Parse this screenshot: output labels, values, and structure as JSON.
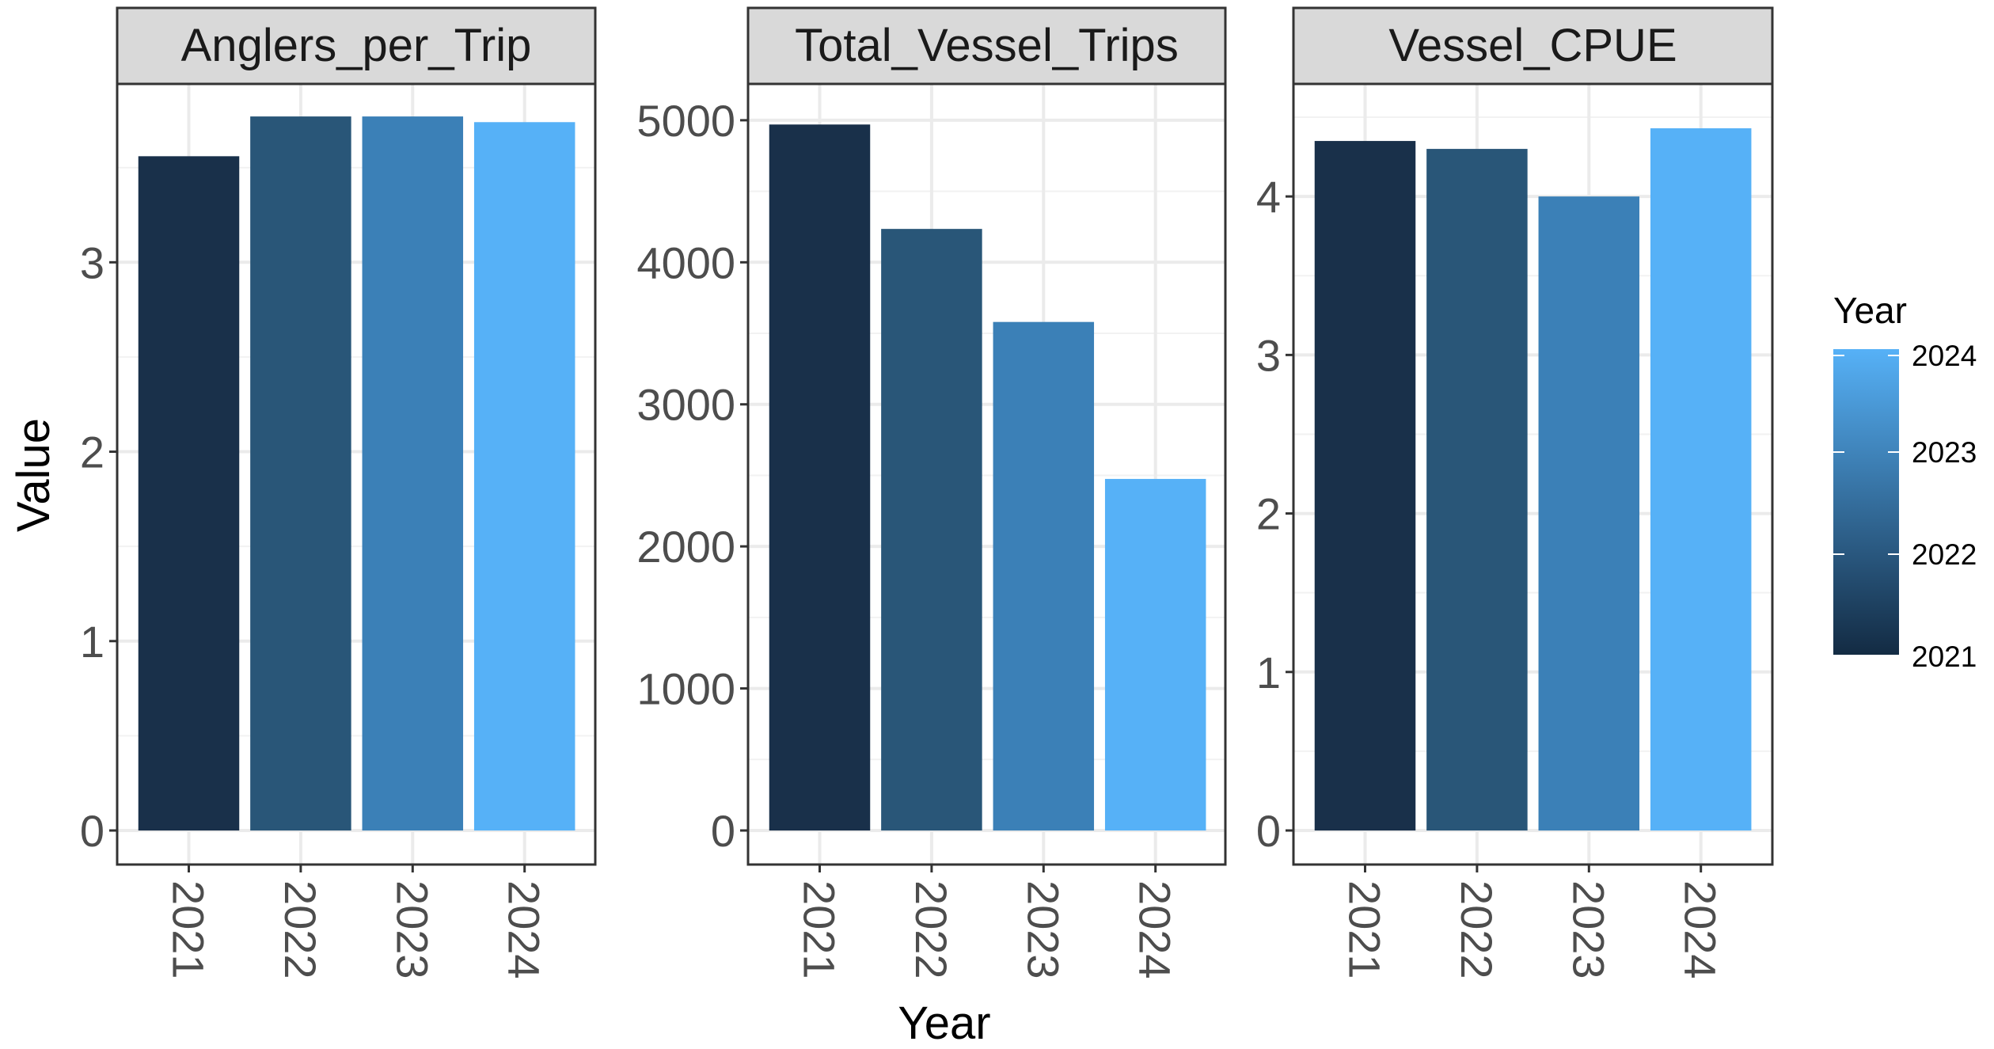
{
  "chart_data": {
    "type": "bar",
    "layout": "faceted",
    "categories": [
      "2021",
      "2022",
      "2023",
      "2024"
    ],
    "xlabel": "Year",
    "ylabel": "Value",
    "legend": {
      "title": "Year",
      "type": "colorbar",
      "placement": "right",
      "labels": [
        "2024",
        "2023",
        "2022",
        "2021"
      ],
      "color_low": "#132B43",
      "color_high": "#56B1F7"
    },
    "bar_colors": [
      "#19304A",
      "#295678",
      "#3B80B7",
      "#56B1F7"
    ],
    "grid": true,
    "panels": [
      {
        "title": "Anglers_per_Trip",
        "values": [
          3.56,
          3.77,
          3.77,
          3.74
        ],
        "ylim": [
          0,
          3.9
        ],
        "yticks": [
          0,
          1,
          2,
          3
        ],
        "ytick_labels": [
          "0",
          "1",
          "2",
          "3"
        ]
      },
      {
        "title": "Total_Vessel_Trips",
        "values": [
          4970,
          4235,
          3580,
          2475
        ],
        "ylim": [
          0,
          5200
        ],
        "yticks": [
          0,
          1000,
          2000,
          3000,
          4000,
          5000
        ],
        "ytick_labels": [
          "0",
          "1000",
          "2000",
          "3000",
          "4000",
          "5000"
        ]
      },
      {
        "title": "Vessel_CPUE",
        "values": [
          4.35,
          4.3,
          4.0,
          4.43
        ],
        "ylim": [
          0,
          4.66
        ],
        "yticks": [
          0,
          1,
          2,
          3,
          4
        ],
        "ytick_labels": [
          "0",
          "1",
          "2",
          "3",
          "4"
        ]
      }
    ]
  }
}
